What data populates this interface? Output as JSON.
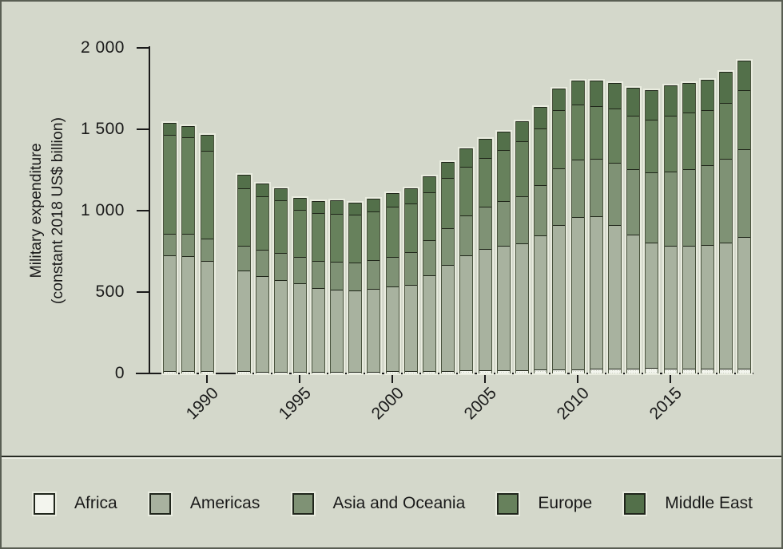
{
  "axis": {
    "ylabel_line1": "Military expenditure",
    "ylabel_line2": "(constant 2018 US$ billion)",
    "y_tick_labels": [
      "0",
      "500",
      "1 000",
      "1 500",
      "2 000"
    ],
    "x_tick_labels": [
      "1990",
      "1995",
      "2000",
      "2005",
      "2010",
      "2015"
    ]
  },
  "colors": {
    "background": "#d4d8cb",
    "axis": "#1a1a1a",
    "bar_halo": "#e9ecdf",
    "africa": "#f3f5ee",
    "americas": "#a8b29f",
    "asia_and_oceania": "#7f9275",
    "europe": "#67815c",
    "middle_east": "#53704a"
  },
  "chart_data": {
    "type": "bar",
    "stacked": true,
    "title": "",
    "xlabel": "",
    "ylabel": "Military expenditure (constant 2018 US$ billion)",
    "ylim": [
      0,
      2000
    ],
    "y_tick_values": [
      0,
      500,
      1000,
      1500,
      2000
    ],
    "x_tick_years": [
      1990,
      1995,
      2000,
      2005,
      2010,
      2015
    ],
    "grid": false,
    "legend_position": "bottom",
    "units": "constant 2018 US$ billion",
    "missing_years": [
      1991
    ],
    "years": [
      1988,
      1989,
      1990,
      1991,
      1992,
      1993,
      1994,
      1995,
      1996,
      1997,
      1998,
      1999,
      2000,
      2001,
      2002,
      2003,
      2004,
      2005,
      2006,
      2007,
      2008,
      2009,
      2010,
      2011,
      2012,
      2013,
      2014,
      2015,
      2016,
      2017,
      2018,
      2019
    ],
    "series": [
      {
        "name": "Africa",
        "color": "#f3f5ee",
        "values": [
          15,
          15,
          14,
          null,
          13,
          12,
          12,
          12,
          11,
          11,
          11,
          12,
          13,
          15,
          16,
          17,
          18,
          19,
          19,
          20,
          22,
          24,
          26,
          29,
          30,
          31,
          32,
          31,
          31,
          31,
          29,
          30
        ]
      },
      {
        "name": "Americas",
        "color": "#a8b29f",
        "values": [
          710,
          704,
          677,
          null,
          621,
          586,
          562,
          540,
          512,
          505,
          500,
          508,
          520,
          529,
          589,
          649,
          709,
          745,
          765,
          780,
          825,
          890,
          933,
          935,
          883,
          820,
          770,
          752,
          755,
          760,
          773,
          810
        ]
      },
      {
        "name": "Asia and Oceania",
        "color": "#7f9275",
        "values": [
          135,
          140,
          136,
          null,
          150,
          160,
          168,
          162,
          166,
          170,
          172,
          176,
          183,
          200,
          214,
          225,
          242,
          262,
          275,
          290,
          310,
          345,
          355,
          356,
          380,
          405,
          431,
          458,
          470,
          486,
          515,
          539
        ]
      },
      {
        "name": "Europe",
        "color": "#67815c",
        "values": [
          607,
          592,
          539,
          null,
          352,
          330,
          320,
          292,
          295,
          296,
          291,
          298,
          308,
          301,
          294,
          311,
          303,
          299,
          315,
          337,
          350,
          360,
          336,
          320,
          335,
          325,
          324,
          343,
          349,
          339,
          345,
          360
        ]
      },
      {
        "name": "Middle East",
        "color": "#53704a",
        "values": [
          74,
          69,
          101,
          null,
          83,
          77,
          74,
          70,
          74,
          80,
          76,
          78,
          86,
          94,
          99,
          95,
          110,
          118,
          113,
          120,
          130,
          132,
          147,
          158,
          155,
          173,
          184,
          186,
          178,
          186,
          190,
          185
        ]
      }
    ]
  }
}
